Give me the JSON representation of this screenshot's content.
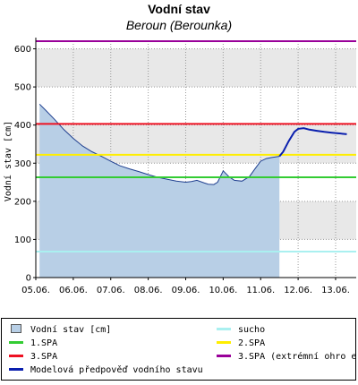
{
  "chart_data": {
    "type": "area",
    "title": "Vodní stav",
    "subtitle": "Beroun (Berounka)",
    "ylabel": "Vodní stav [cm]",
    "xlabel": "",
    "ylim": [
      0,
      620
    ],
    "y_ticks": [
      0,
      100,
      200,
      300,
      400,
      500,
      600
    ],
    "x_ticks": [
      "05.06.",
      "06.06.",
      "07.06.",
      "08.06.",
      "09.06.",
      "10.06.",
      "11.06.",
      "12.06.",
      "13.06."
    ],
    "xlim": [
      0,
      8.55
    ],
    "grid": true,
    "series": [
      {
        "name": "Vodní stav [cm]",
        "kind": "area",
        "color": "#b8cfe6",
        "edge_color": "#1f3f8f",
        "x": [
          0.1,
          0.25,
          0.5,
          0.75,
          1.0,
          1.25,
          1.5,
          1.75,
          2.0,
          2.25,
          2.5,
          2.75,
          3.0,
          3.25,
          3.5,
          3.75,
          4.0,
          4.15,
          4.3,
          4.5,
          4.6,
          4.75,
          4.85,
          4.9,
          5.0,
          5.15,
          5.3,
          5.5,
          5.7,
          5.85,
          6.0,
          6.15,
          6.3,
          6.5
        ],
        "y": [
          455,
          440,
          415,
          388,
          365,
          345,
          330,
          318,
          305,
          293,
          285,
          278,
          270,
          263,
          258,
          253,
          250,
          252,
          255,
          248,
          245,
          244,
          250,
          260,
          280,
          265,
          255,
          253,
          265,
          285,
          305,
          312,
          315,
          318
        ]
      },
      {
        "name": "sucho",
        "kind": "hline",
        "color": "#aaf0f0",
        "value": 68
      },
      {
        "name": "1.SPA",
        "kind": "hline",
        "color": "#33cc33",
        "value": 263
      },
      {
        "name": "2.SPA",
        "kind": "hline",
        "color": "#ffee00",
        "value": 322
      },
      {
        "name": "3.SPA",
        "kind": "hline",
        "color": "#ee1122",
        "value": 403
      },
      {
        "name": "3.SPA (extrémní ohro e",
        "kind": "hline",
        "color": "#990099",
        "value": 620
      },
      {
        "name": "Modelová předpověď vodního stavu",
        "kind": "line",
        "color": "#0a1fae",
        "x": [
          6.5,
          6.6,
          6.75,
          6.9,
          7.0,
          7.15,
          7.3,
          7.5,
          7.7,
          7.9,
          8.1,
          8.3
        ],
        "y": [
          318,
          330,
          358,
          382,
          390,
          392,
          388,
          385,
          382,
          380,
          378,
          376
        ]
      }
    ],
    "legend_position": "bottom"
  },
  "legend": [
    {
      "label": "Vodní stav [cm]",
      "swatch": "box",
      "color": "#b8cfe6"
    },
    {
      "label": "sucho",
      "swatch": "line",
      "color": "#aaf0f0"
    },
    {
      "label": "1.SPA",
      "swatch": "line",
      "color": "#33cc33"
    },
    {
      "label": "2.SPA",
      "swatch": "line",
      "color": "#ffee00"
    },
    {
      "label": "3.SPA",
      "swatch": "line",
      "color": "#ee1122"
    },
    {
      "label": "3.SPA (extrémní ohro e",
      "swatch": "line",
      "color": "#990099"
    },
    {
      "label": "Modelová předpověď vodního stavu",
      "swatch": "line",
      "color": "#0a1fae"
    }
  ]
}
